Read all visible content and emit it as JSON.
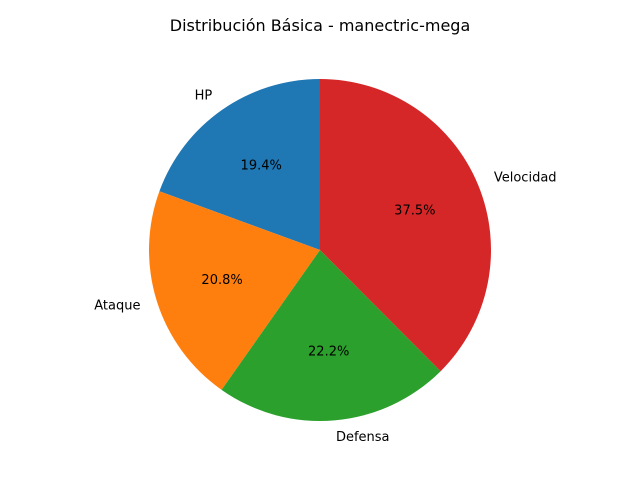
{
  "chart_data": {
    "type": "pie",
    "title": "Distribución Básica - manectric-mega",
    "slices": [
      {
        "label": "HP",
        "value": 19.4,
        "pct_label": "19.4%",
        "color": "#1f77b4"
      },
      {
        "label": "Ataque",
        "value": 20.8,
        "pct_label": "20.8%",
        "color": "#ff7f0e"
      },
      {
        "label": "Defensa",
        "value": 22.2,
        "pct_label": "22.2%",
        "color": "#2ca02c"
      },
      {
        "label": "Velocidad",
        "value": 37.5,
        "pct_label": "37.5%",
        "color": "#d62728"
      }
    ],
    "start_angle_deg": 90,
    "direction": "counterclockwise"
  }
}
